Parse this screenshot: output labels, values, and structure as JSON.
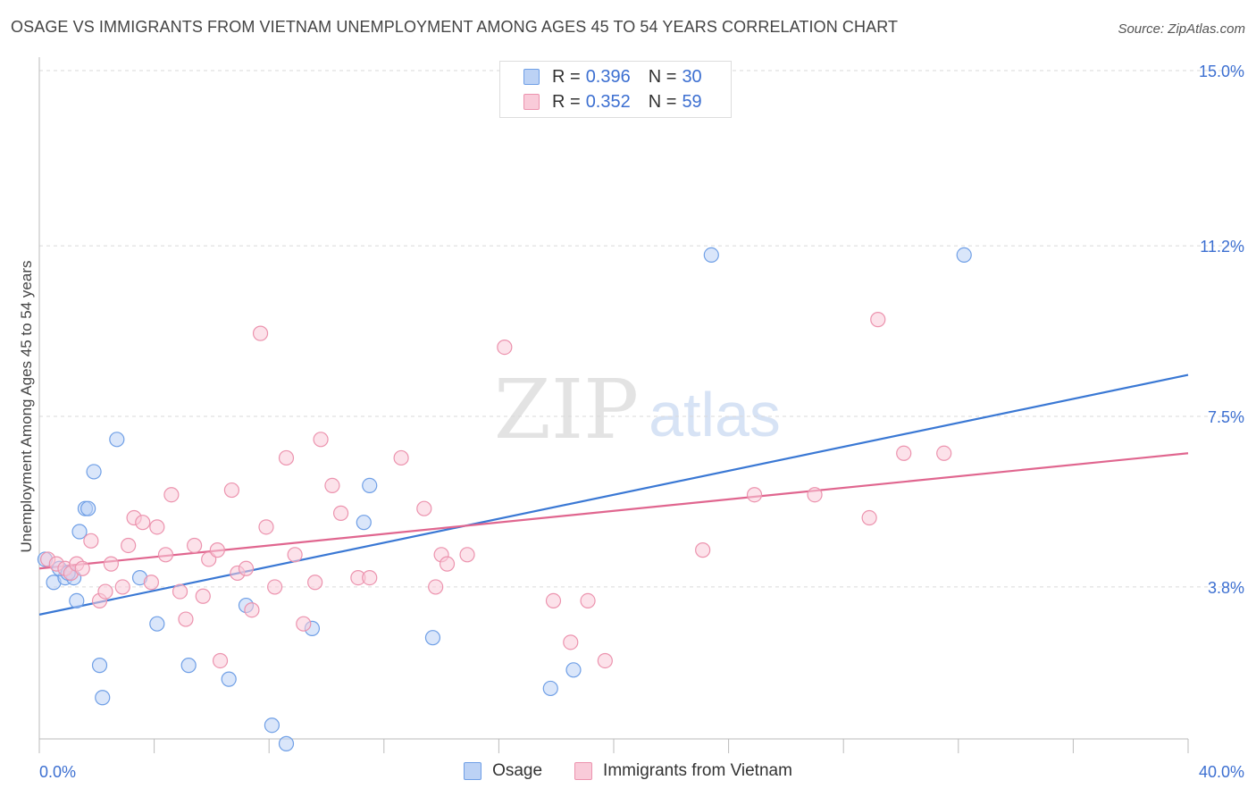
{
  "header": {
    "title": "OSAGE VS IMMIGRANTS FROM VIETNAM UNEMPLOYMENT AMONG AGES 45 TO 54 YEARS CORRELATION CHART",
    "source": "Source: ZipAtlas.com"
  },
  "watermark": {
    "zip": "ZIP",
    "atlas": "atlas"
  },
  "legend": {
    "rows": [
      {
        "r_label": "R =",
        "r_value": "0.396",
        "n_label": "N =",
        "n_value": "30",
        "color": "#a9c4f0"
      },
      {
        "r_label": "R =",
        "r_value": "0.352",
        "n_label": "N =",
        "n_value": "59",
        "color": "#f5b8cb"
      }
    ]
  },
  "chart_data": {
    "type": "scatter",
    "title": "OSAGE VS IMMIGRANTS FROM VIETNAM UNEMPLOYMENT AMONG AGES 45 TO 54 YEARS CORRELATION CHART",
    "ylabel": "Unemployment Among Ages 45 to 54 years",
    "xlabel": "",
    "xlim": [
      0,
      40
    ],
    "ylim": [
      0,
      15.5
    ],
    "x_tick_labels": [
      "0.0%",
      "40.0%"
    ],
    "y_ticks": [
      3.8,
      7.5,
      11.2,
      15.0
    ],
    "y_tick_labels": [
      "3.8%",
      "7.5%",
      "11.2%",
      "15.0%"
    ],
    "grid": true,
    "legend_position": "top-center",
    "series": [
      {
        "name": "Osage",
        "color": "#6f9fe6",
        "fill": "#bcd2f5",
        "line_color": "#3a78d4",
        "trend": {
          "x": [
            0,
            40
          ],
          "y": [
            3.2,
            8.4
          ]
        },
        "points": [
          [
            0.2,
            4.4
          ],
          [
            0.5,
            3.9
          ],
          [
            0.9,
            4.0
          ],
          [
            1.1,
            4.1
          ],
          [
            1.2,
            4.0
          ],
          [
            1.3,
            3.5
          ],
          [
            1.4,
            5.0
          ],
          [
            1.6,
            5.5
          ],
          [
            1.7,
            5.5
          ],
          [
            1.9,
            6.3
          ],
          [
            2.1,
            2.1
          ],
          [
            2.2,
            1.4
          ],
          [
            2.7,
            7.0
          ],
          [
            3.5,
            4.0
          ],
          [
            4.1,
            3.0
          ],
          [
            5.2,
            2.1
          ],
          [
            6.6,
            1.8
          ],
          [
            7.2,
            3.4
          ],
          [
            8.1,
            0.8
          ],
          [
            8.6,
            0.4
          ],
          [
            9.5,
            2.9
          ],
          [
            11.3,
            5.2
          ],
          [
            11.5,
            6.0
          ],
          [
            13.7,
            2.7
          ],
          [
            17.8,
            1.6
          ],
          [
            18.6,
            2.0
          ],
          [
            23.4,
            11.0
          ],
          [
            32.2,
            11.0
          ],
          [
            0.7,
            4.2
          ],
          [
            1.0,
            4.1
          ]
        ]
      },
      {
        "name": "Immigrants from Vietnam",
        "color": "#ec93ae",
        "fill": "#f9cbd9",
        "line_color": "#e0668f",
        "trend": {
          "x": [
            0,
            40
          ],
          "y": [
            4.2,
            6.7
          ]
        },
        "points": [
          [
            0.3,
            4.4
          ],
          [
            0.6,
            4.3
          ],
          [
            0.9,
            4.2
          ],
          [
            1.1,
            4.1
          ],
          [
            1.3,
            4.3
          ],
          [
            1.5,
            4.2
          ],
          [
            1.8,
            4.8
          ],
          [
            2.1,
            3.5
          ],
          [
            2.3,
            3.7
          ],
          [
            2.5,
            4.3
          ],
          [
            2.9,
            3.8
          ],
          [
            3.1,
            4.7
          ],
          [
            3.3,
            5.3
          ],
          [
            3.6,
            5.2
          ],
          [
            3.9,
            3.9
          ],
          [
            4.1,
            5.1
          ],
          [
            4.4,
            4.5
          ],
          [
            4.6,
            5.8
          ],
          [
            4.9,
            3.7
          ],
          [
            5.1,
            3.1
          ],
          [
            5.4,
            4.7
          ],
          [
            5.7,
            3.6
          ],
          [
            5.9,
            4.4
          ],
          [
            6.2,
            4.6
          ],
          [
            6.3,
            2.2
          ],
          [
            6.7,
            5.9
          ],
          [
            6.9,
            4.1
          ],
          [
            7.2,
            4.2
          ],
          [
            7.4,
            3.3
          ],
          [
            7.7,
            9.3
          ],
          [
            7.9,
            5.1
          ],
          [
            8.2,
            3.8
          ],
          [
            8.6,
            6.6
          ],
          [
            8.9,
            4.5
          ],
          [
            9.2,
            3.0
          ],
          [
            9.6,
            3.9
          ],
          [
            9.8,
            7.0
          ],
          [
            10.2,
            6.0
          ],
          [
            10.5,
            5.4
          ],
          [
            11.1,
            4.0
          ],
          [
            11.5,
            4.0
          ],
          [
            12.6,
            6.6
          ],
          [
            13.4,
            5.5
          ],
          [
            13.8,
            3.8
          ],
          [
            14.0,
            4.5
          ],
          [
            14.2,
            4.3
          ],
          [
            14.9,
            4.5
          ],
          [
            16.2,
            9.0
          ],
          [
            17.9,
            3.5
          ],
          [
            18.5,
            2.6
          ],
          [
            19.1,
            3.5
          ],
          [
            19.7,
            2.2
          ],
          [
            23.1,
            4.6
          ],
          [
            24.9,
            5.8
          ],
          [
            27.0,
            5.8
          ],
          [
            28.9,
            5.3
          ],
          [
            29.2,
            9.6
          ],
          [
            30.1,
            6.7
          ],
          [
            31.5,
            6.7
          ]
        ]
      }
    ]
  }
}
